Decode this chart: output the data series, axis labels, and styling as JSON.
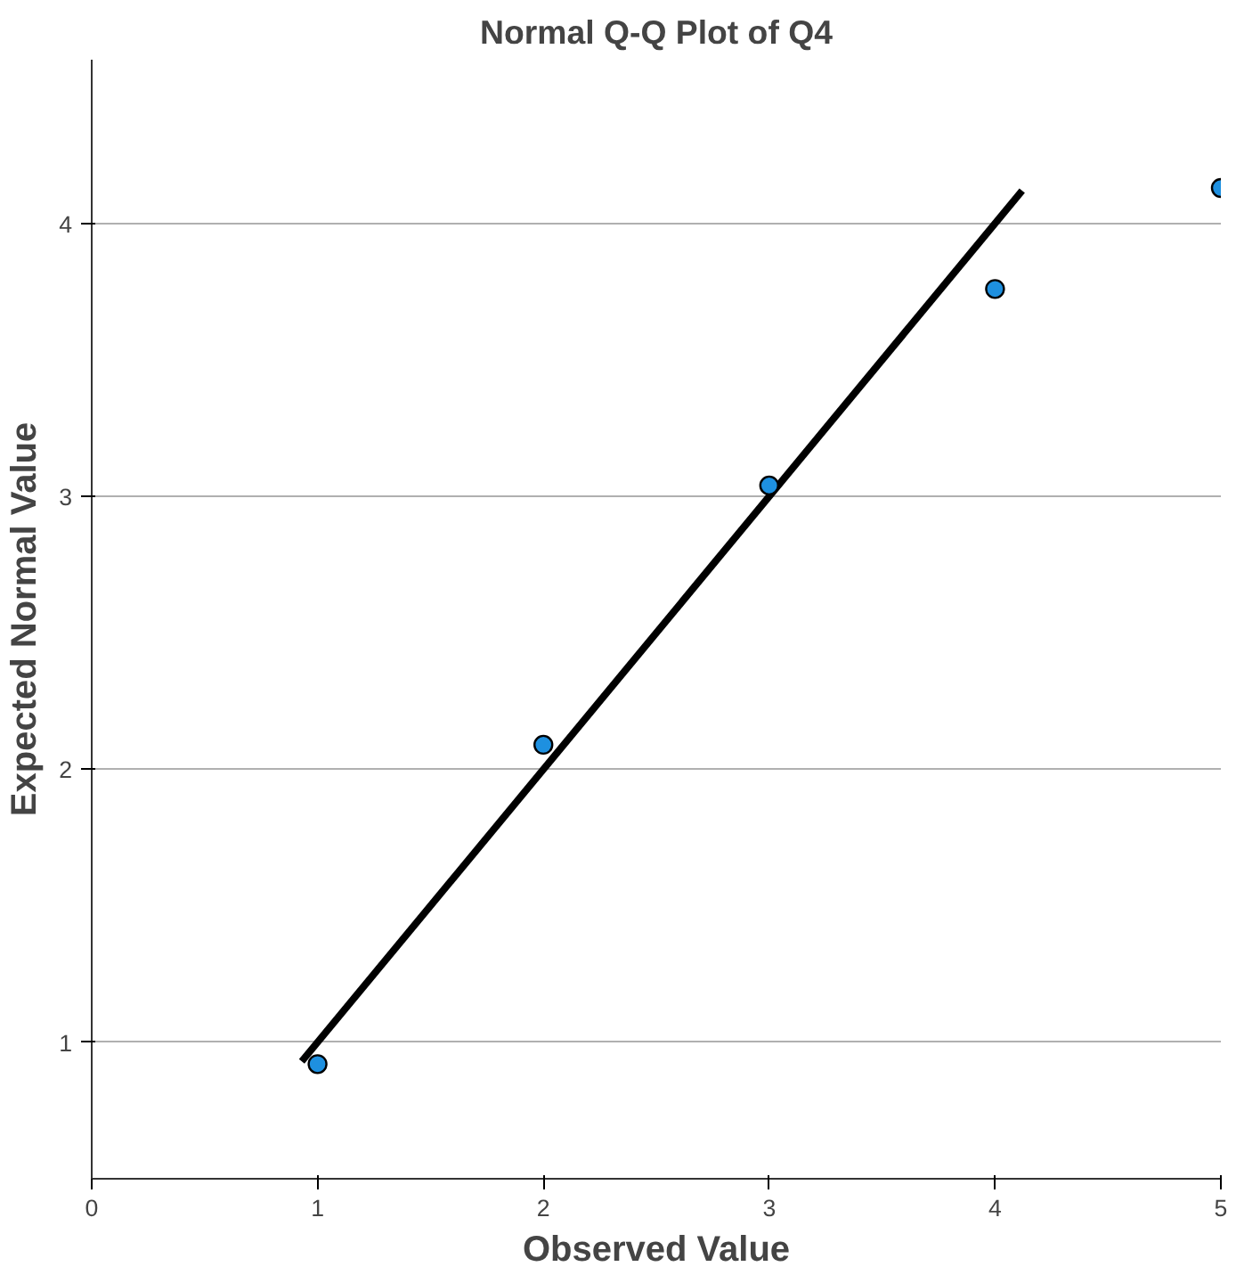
{
  "chart_data": {
    "type": "scatter",
    "title": "Normal Q-Q Plot of Q4",
    "xlabel": "Observed Value",
    "ylabel": "Expected Normal Value",
    "xlim": [
      0,
      5
    ],
    "ylim": [
      0.5,
      4.6
    ],
    "xticks": [
      0,
      1,
      2,
      3,
      4,
      5
    ],
    "yticks": [
      1,
      2,
      3,
      4
    ],
    "grid": "y",
    "series": [
      {
        "marker": "circle",
        "color": "#1e90e0",
        "x": [
          1,
          2,
          3,
          4,
          5
        ],
        "values": [
          0.92,
          2.09,
          3.04,
          3.76,
          4.13
        ]
      },
      {
        "type": "line",
        "color": "#000000",
        "x": [
          0.93,
          4.12
        ],
        "values": [
          0.93,
          4.12
        ]
      }
    ]
  }
}
